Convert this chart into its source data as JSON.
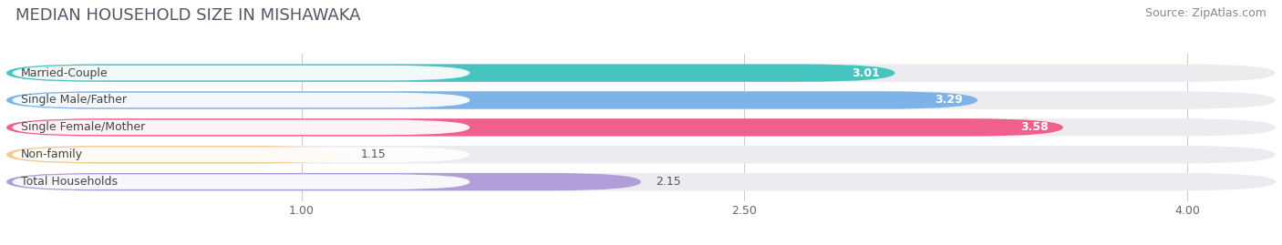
{
  "title": "MEDIAN HOUSEHOLD SIZE IN MISHAWAKA",
  "source": "Source: ZipAtlas.com",
  "categories": [
    "Married-Couple",
    "Single Male/Father",
    "Single Female/Mother",
    "Non-family",
    "Total Households"
  ],
  "values": [
    3.01,
    3.29,
    3.58,
    1.15,
    2.15
  ],
  "bar_colors": [
    "#45C4C0",
    "#7EB3E8",
    "#F0608A",
    "#F5C990",
    "#B09ED8"
  ],
  "value_label_colors": [
    "white",
    "white",
    "white",
    "#666666",
    "#666666"
  ],
  "xlim_left": 0.0,
  "xlim_right": 4.3,
  "xmin": 0.0,
  "xmax": 4.0,
  "xticks": [
    1.0,
    2.5,
    4.0
  ],
  "xticklabels": [
    "1.00",
    "2.50",
    "4.00"
  ],
  "background_color": "#ffffff",
  "bar_bg_color": "#ebebf0",
  "title_fontsize": 13,
  "source_fontsize": 9,
  "label_fontsize": 9,
  "value_fontsize": 9,
  "tick_fontsize": 9,
  "bar_height": 0.65,
  "bar_gap": 0.35,
  "figsize": [
    14.06,
    2.69
  ]
}
